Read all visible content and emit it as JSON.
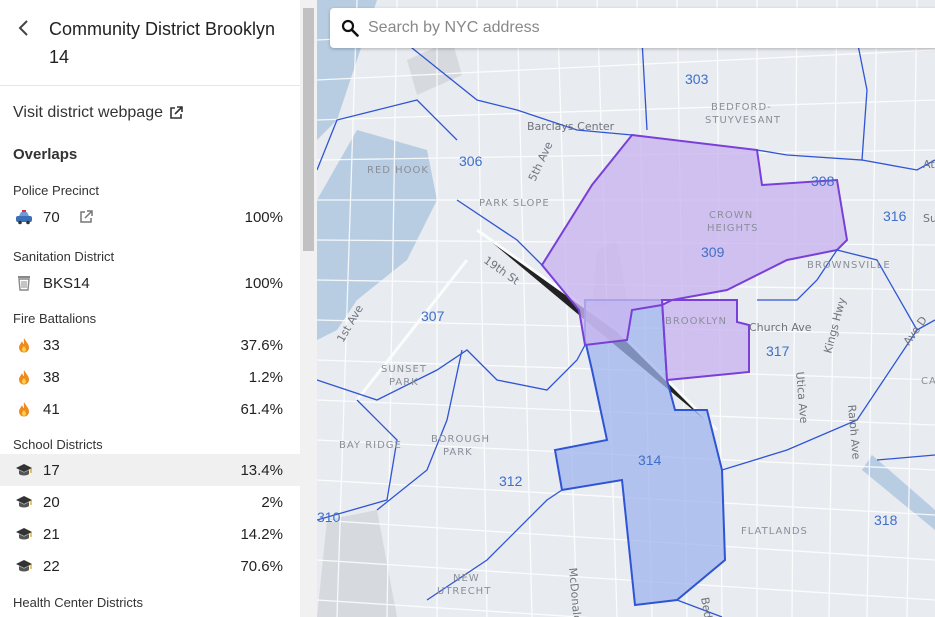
{
  "header": {
    "title": "Community District Brooklyn 14"
  },
  "links": {
    "visit": "Visit district webpage"
  },
  "overlaps_heading": "Overlaps",
  "sections": {
    "police": {
      "label": "Police Precinct",
      "rows": [
        {
          "name": "70",
          "pct": "100%"
        }
      ]
    },
    "sanitation": {
      "label": "Sanitation District",
      "rows": [
        {
          "name": "BKS14",
          "pct": "100%"
        }
      ]
    },
    "fire": {
      "label": "Fire Battalions",
      "rows": [
        {
          "name": "33",
          "pct": "37.6%"
        },
        {
          "name": "38",
          "pct": "1.2%"
        },
        {
          "name": "41",
          "pct": "61.4%"
        }
      ]
    },
    "school": {
      "label": "School Districts",
      "rows": [
        {
          "name": "17",
          "pct": "13.4%"
        },
        {
          "name": "20",
          "pct": "2%"
        },
        {
          "name": "21",
          "pct": "14.2%"
        },
        {
          "name": "22",
          "pct": "70.6%"
        }
      ]
    },
    "health": {
      "label": "Health Center Districts"
    }
  },
  "search": {
    "placeholder": "Search by NYC address"
  },
  "map": {
    "districts": [
      "303",
      "306",
      "307",
      "308",
      "309",
      "310",
      "312",
      "314",
      "316",
      "317",
      "318"
    ],
    "places": [
      "RED HOOK",
      "PARK SLOPE",
      "BEDFORD-",
      "STUYVESANT",
      "CROWN",
      "HEIGHTS",
      "BROWNSVILLE",
      "BROOKLYN",
      "SUNSET",
      "PARK",
      "BOROUGH",
      "PARK",
      "BAY RIDGE",
      "FLATLANDS",
      "NEW",
      "UTRECHT",
      "Barclays Center",
      "CA"
    ],
    "streets": [
      "5th Ave",
      "19th St",
      "1st Ave",
      "Church Ave",
      "Kings Hwy",
      "Utica Ave",
      "Ralph Ave",
      "Ave D",
      "McDonald",
      "Bedfo",
      "Atl",
      "Su"
    ]
  },
  "colors": {
    "district_line": "#2f55d4",
    "selected_fill": "#9fb4ee",
    "overlap_fill": "#c9b5f0",
    "overlap_line": "#7a3fd8",
    "highlight_row": "#f0f0f0"
  }
}
